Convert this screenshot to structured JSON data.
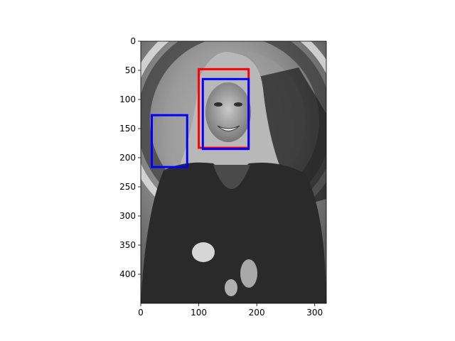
{
  "image": {
    "description_icon": "grayscale-portrait-photo",
    "width": 320,
    "height": 450
  },
  "axes": {
    "x_ticks": [
      0,
      100,
      200,
      300
    ],
    "y_ticks": [
      0,
      50,
      100,
      150,
      200,
      250,
      300,
      350,
      400
    ]
  },
  "boxes": [
    {
      "label": "",
      "color": "#ff0000",
      "x0": 100,
      "y0": 48,
      "x1": 186,
      "y1": 183
    },
    {
      "label": "",
      "color": "#0000ff",
      "x0": 107,
      "y0": 65,
      "x1": 186,
      "y1": 185
    },
    {
      "label": "",
      "color": "#0000ff",
      "x0": 19,
      "y0": 127,
      "x1": 80,
      "y1": 216
    }
  ],
  "colors": {
    "detection_red": "#ff0000",
    "detection_blue": "#0000ff"
  }
}
